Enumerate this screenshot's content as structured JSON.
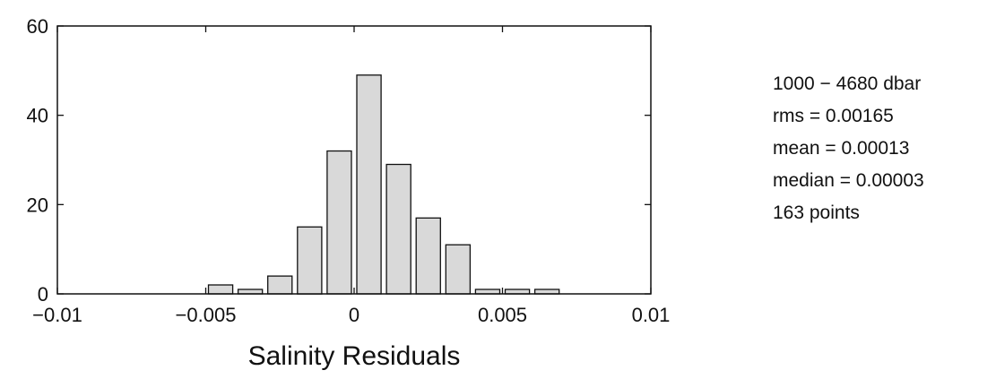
{
  "chart_data": {
    "type": "bar",
    "title": "",
    "xlabel": "Salinity Residuals",
    "ylabel": "",
    "xlim": [
      -0.01,
      0.01
    ],
    "ylim": [
      0,
      60
    ],
    "bin_width": 0.001,
    "bins": [
      {
        "center": -0.0045,
        "count": 2
      },
      {
        "center": -0.0035,
        "count": 1
      },
      {
        "center": -0.0025,
        "count": 4
      },
      {
        "center": -0.0015,
        "count": 15
      },
      {
        "center": -0.0005,
        "count": 32
      },
      {
        "center": 0.0005,
        "count": 49
      },
      {
        "center": 0.0015,
        "count": 29
      },
      {
        "center": 0.0025,
        "count": 17
      },
      {
        "center": 0.0035,
        "count": 11
      },
      {
        "center": 0.0045,
        "count": 1
      },
      {
        "center": 0.0055,
        "count": 1
      },
      {
        "center": 0.0065,
        "count": 1
      }
    ],
    "x_ticks": [
      {
        "value": -0.01,
        "label": "−0.01"
      },
      {
        "value": -0.005,
        "label": "−0.005"
      },
      {
        "value": 0,
        "label": "0"
      },
      {
        "value": 0.005,
        "label": "0.005"
      },
      {
        "value": 0.01,
        "label": "0.01"
      }
    ],
    "y_ticks": [
      {
        "value": 0,
        "label": "0"
      },
      {
        "value": 20,
        "label": "20"
      },
      {
        "value": 40,
        "label": "40"
      },
      {
        "value": 60,
        "label": "60"
      }
    ],
    "grid": false,
    "bar_color": "#d9d9d9",
    "edge_color": "#111111"
  },
  "stats": {
    "lines": [
      "1000 − 4680 dbar",
      "rms = 0.00165",
      "mean = 0.00013",
      "median = 0.00003",
      "163 points"
    ]
  }
}
